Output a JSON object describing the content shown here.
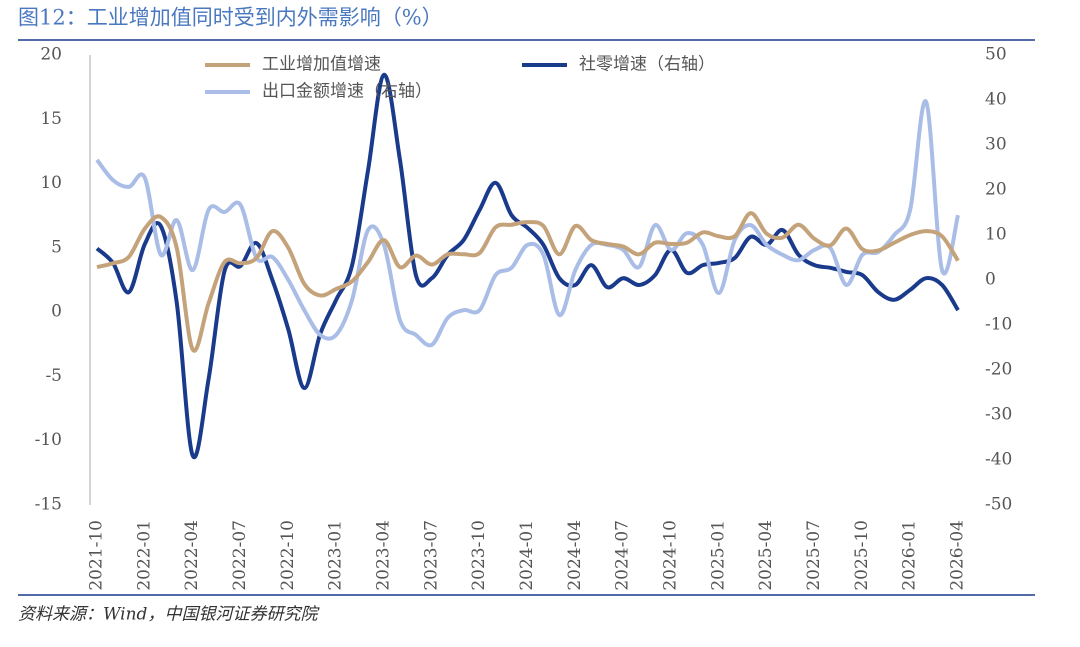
{
  "chart_data": {
    "type": "line",
    "title": "图12：工业增加值同时受到内外需影响（%）",
    "source": "资料来源：Wind，中国银河证券研究院",
    "categories": [
      "2021-10",
      null,
      null,
      "2022-01",
      null,
      null,
      "2022-04",
      null,
      null,
      "2022-07",
      null,
      null,
      "2022-10",
      null,
      null,
      "2023-01",
      null,
      null,
      "2023-04",
      null,
      null,
      "2023-07",
      null,
      null,
      "2023-10",
      null,
      null,
      "2024-01",
      null,
      null,
      "2024-04",
      null,
      null,
      "2024-07",
      null,
      null,
      "2024-10",
      null,
      null,
      "2025-01",
      null,
      null,
      "2025-04",
      null,
      null,
      "2025-07",
      null,
      null,
      "2025-10",
      null,
      null,
      "2026-01",
      null,
      null,
      "2026-04"
    ],
    "series": [
      {
        "name": "工业增加值增速",
        "color": "#c4a27a",
        "values": [
          3.5,
          3.8,
          4.3,
          6.5,
          7.4,
          5.0,
          -2.9,
          0.7,
          3.9,
          3.8,
          4.2,
          6.3,
          5.0,
          2.2,
          1.3,
          1.8,
          2.4,
          3.9,
          5.6,
          3.5,
          4.4,
          3.7,
          4.5,
          4.5,
          4.6,
          6.6,
          6.8,
          7.0,
          6.7,
          4.5,
          6.7,
          5.6,
          5.3,
          5.1,
          4.5,
          5.4,
          5.3,
          5.4,
          6.2,
          5.9,
          5.9,
          7.7,
          6.1,
          5.8,
          6.8,
          5.7,
          5.2,
          6.5,
          4.9,
          4.8,
          5.4,
          6.0,
          6.3,
          5.9,
          4.0
        ]
      },
      {
        "name": "社零增速（右轴）",
        "color": "#1a3a8c",
        "axis": "y2",
        "values": [
          7.0,
          3.8,
          -2.7,
          8.0,
          12.0,
          -5.0,
          -39.0,
          -22.0,
          2.0,
          3.1,
          8.2,
          0.0,
          -11.0,
          -24.0,
          -12.0,
          -4.4,
          3.3,
          24.4,
          45.6,
          26.7,
          1.1,
          0.4,
          5.6,
          8.9,
          15.6,
          21.6,
          14.4,
          11.6,
          7.8,
          0.4,
          -1.1,
          3.3,
          -1.6,
          0.4,
          -1.1,
          1.1,
          6.7,
          1.6,
          3.3,
          3.8,
          4.9,
          9.6,
          7.8,
          11.1,
          5.6,
          3.3,
          2.7,
          1.8,
          1.1,
          -2.7,
          -4.4,
          -2.2,
          0.4,
          -1.1,
          -6.7
        ]
      },
      {
        "name": "出口金额增速（右轴）",
        "color": "#a9bde6",
        "axis": "y2",
        "values": [
          26.7,
          22.2,
          20.7,
          22.7,
          5.6,
          13.3,
          2.2,
          15.6,
          15.1,
          16.7,
          4.9,
          5.1,
          0.0,
          -6.7,
          -12.2,
          -12.2,
          -4.4,
          11.1,
          7.8,
          -8.9,
          -12.2,
          -14.4,
          -8.4,
          -6.7,
          -6.7,
          1.1,
          2.7,
          7.8,
          5.6,
          -7.8,
          2.2,
          7.8,
          7.8,
          6.7,
          2.9,
          12.2,
          6.7,
          10.4,
          7.8,
          -2.9,
          8.9,
          12.2,
          7.8,
          5.6,
          4.4,
          6.7,
          7.1,
          -1.1,
          5.6,
          6.2,
          10.0,
          15.6,
          39.6,
          2.2,
          14.4
        ]
      }
    ],
    "ylim": [
      -15,
      20
    ],
    "yticks": [
      -15,
      -10,
      -5,
      0,
      5,
      10,
      15,
      20
    ],
    "y2lim": [
      -50,
      50
    ],
    "y2ticks": [
      -50,
      -40,
      -30,
      -20,
      -10,
      0,
      10,
      20,
      30,
      40,
      50
    ],
    "grid": false,
    "legend": "top"
  }
}
